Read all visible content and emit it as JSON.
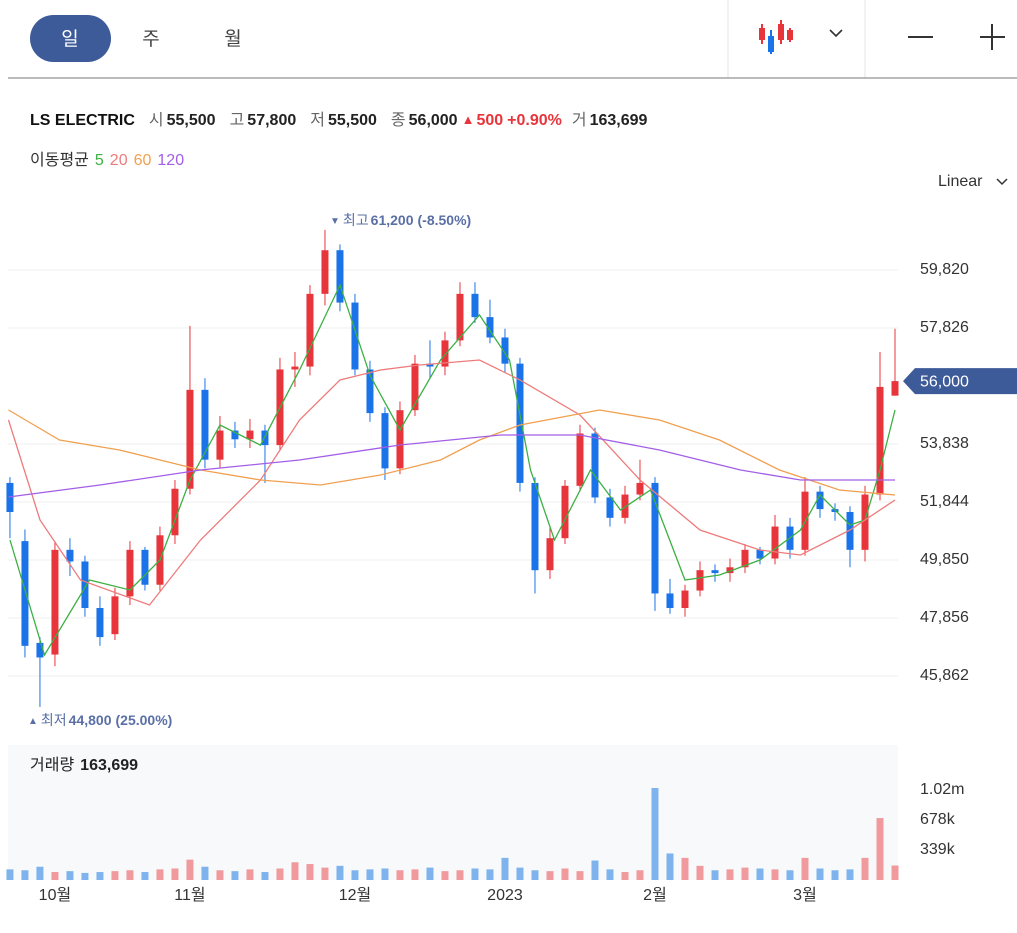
{
  "toolbar": {
    "tabs": [
      "일",
      "주",
      "월"
    ]
  },
  "info": {
    "name": "LS ELECTRIC",
    "items": [
      {
        "label": "시",
        "value": "55,500"
      },
      {
        "label": "고",
        "value": "57,800"
      },
      {
        "label": "저",
        "value": "55,500"
      },
      {
        "label": "종",
        "value": "56,000"
      }
    ],
    "change": {
      "arrow": "▲",
      "amount": "500",
      "percent": "+0.90%"
    },
    "volume": {
      "label": "거",
      "value": "163,699"
    }
  },
  "chart_data": {
    "type": "candlestick",
    "ma_title": "이동평균",
    "scale_label": "Linear",
    "grid": true,
    "xlim": [
      -0.13,
      59.2
    ],
    "xticks": [
      {
        "value": 3,
        "label": "10월"
      },
      {
        "value": 12,
        "label": "11월"
      },
      {
        "value": 23,
        "label": "12월"
      },
      {
        "value": 33,
        "label": "2023"
      },
      {
        "value": 43,
        "label": "2월"
      },
      {
        "value": 53,
        "label": "3월"
      }
    ],
    "ylim": [
      44006,
      62570
    ],
    "yticks": [
      {
        "value": 45862,
        "label": "45,862"
      },
      {
        "value": 47856,
        "label": "47,856"
      },
      {
        "value": 49850,
        "label": "49,850"
      },
      {
        "value": 51844,
        "label": "51,844"
      },
      {
        "value": 53838,
        "label": "53,838"
      },
      {
        "value": 57826,
        "label": "57,826"
      },
      {
        "value": 59820,
        "label": "59,820"
      }
    ],
    "up_color": "#e8343b",
    "down_color": "#1a73e8",
    "open": [
      52500,
      50500,
      47000,
      46600,
      50200,
      49800,
      48200,
      47300,
      48600,
      50200,
      49000,
      50700,
      52300,
      55700,
      53300,
      54300,
      54000,
      54300,
      53800,
      56400,
      56500,
      59000,
      60500,
      58700,
      56400,
      54900,
      53000,
      55000,
      56600,
      56500,
      57400,
      59000,
      58200,
      57500,
      56600,
      52500,
      49500,
      50600,
      52400,
      54200,
      52000,
      51300,
      52100,
      52500,
      48700,
      48200,
      48800,
      49500,
      49400,
      49600,
      50200,
      49900,
      51000,
      50200,
      52200,
      51600,
      51500,
      50200,
      52100,
      55500
    ],
    "high": [
      52700,
      50900,
      47200,
      50500,
      50600,
      50000,
      48600,
      48900,
      50500,
      50300,
      51000,
      52600,
      57900,
      56100,
      54800,
      54600,
      54700,
      54500,
      56800,
      57000,
      59300,
      61200,
      60700,
      59000,
      56700,
      55100,
      55300,
      56900,
      57400,
      57700,
      59400,
      59400,
      58800,
      57800,
      56800,
      52700,
      51000,
      52600,
      54500,
      54400,
      52300,
      52400,
      53300,
      52700,
      49200,
      49000,
      49800,
      49700,
      49900,
      50400,
      50300,
      51400,
      51300,
      52700,
      52400,
      51800,
      51700,
      52400,
      57000,
      57800
    ],
    "low": [
      50600,
      46500,
      44800,
      46200,
      49300,
      47900,
      46900,
      47100,
      48300,
      48800,
      48800,
      50400,
      52100,
      53000,
      53000,
      53700,
      53700,
      52500,
      53600,
      55800,
      56200,
      58600,
      58400,
      56200,
      54600,
      52600,
      52800,
      54800,
      56100,
      56200,
      57200,
      58000,
      57300,
      56300,
      52200,
      48700,
      49200,
      50400,
      52200,
      51800,
      51000,
      51100,
      51900,
      48100,
      48000,
      47900,
      48600,
      49100,
      49100,
      49400,
      49700,
      49700,
      49900,
      50000,
      51300,
      51200,
      49600,
      49800,
      51900,
      55500
    ],
    "close": [
      51500,
      46900,
      46500,
      50200,
      49800,
      48200,
      47200,
      48600,
      50200,
      49000,
      50700,
      52300,
      55700,
      53300,
      54300,
      54000,
      54300,
      53800,
      56400,
      56500,
      59000,
      60500,
      58700,
      56400,
      54900,
      53000,
      55000,
      56600,
      56500,
      57400,
      59000,
      58200,
      57500,
      56600,
      52500,
      49500,
      50600,
      52400,
      54200,
      52000,
      51300,
      52100,
      52500,
      48700,
      48200,
      48800,
      49500,
      49400,
      49600,
      50200,
      49900,
      51000,
      50200,
      52200,
      51600,
      51500,
      50200,
      52100,
      55800,
      56000
    ],
    "ma": [
      {
        "name": "5",
        "color": "#3cb043",
        "x": [
          0,
          2.3,
          5.3,
          8,
          10,
          12,
          14,
          16.7,
          19.3,
          22,
          24,
          26,
          28.7,
          31.3,
          33.3,
          34.7,
          36.3,
          38.7,
          40.7,
          42.7,
          45,
          47.3,
          50,
          52.7,
          54,
          56,
          57,
          58,
          59
        ],
        "values": [
          50537,
          46583,
          49162,
          48818,
          49850,
          52600,
          54490,
          53800,
          56380,
          59300,
          56200,
          54320,
          56726,
          58273,
          56726,
          52944,
          50537,
          52944,
          51569,
          52257,
          49162,
          49334,
          49850,
          50880,
          52085,
          51054,
          51225,
          52944,
          55006
        ]
      },
      {
        "name": "20",
        "color": "#ee7b7b",
        "x": [
          -0.1,
          2,
          4.7,
          9.3,
          12.7,
          16.7,
          19.3,
          22,
          24.7,
          27.3,
          31.3,
          34,
          38,
          42,
          46,
          50,
          52.7,
          56,
          59
        ],
        "values": [
          54663,
          51225,
          49162,
          48302,
          50537,
          52600,
          54663,
          56038,
          56382,
          56554,
          56726,
          56038,
          54835,
          52600,
          50880,
          50193,
          50021,
          50880,
          51912
        ]
      },
      {
        "name": "60",
        "color": "#f0a050",
        "x": [
          -0.1,
          3.3,
          7.3,
          12.7,
          16.7,
          20.7,
          24.7,
          28.7,
          31.3,
          34,
          39.3,
          43.3,
          47.3,
          51.3,
          55.3,
          59
        ],
        "values": [
          55006,
          53975,
          53631,
          52944,
          52600,
          52428,
          52772,
          53288,
          53975,
          54490,
          55006,
          54663,
          53975,
          52944,
          52257,
          52085
        ]
      },
      {
        "name": "120",
        "color": "#a35ee8",
        "x": [
          -0.1,
          6,
          12.7,
          19.3,
          26,
          32.7,
          38,
          43.3,
          48.7,
          52.7,
          59
        ],
        "values": [
          52016,
          52428,
          52944,
          53288,
          53804,
          54147,
          54147,
          53631,
          52944,
          52600,
          52600
        ]
      }
    ],
    "max_label": {
      "marker": "▼",
      "text": "최고",
      "value": 61200,
      "value_label": "61,200",
      "change": "(-8.50%)"
    },
    "min_label": {
      "marker": "▲",
      "text": "최저",
      "value": 44800,
      "value_label": "44,800",
      "change": "(25.00%)"
    },
    "last_price": {
      "value": 56000,
      "label": "56,000"
    },
    "volume": {
      "title": "거래량",
      "last_label": "163,699",
      "up_color": "#f09a9d",
      "down_color": "#7fb3ee",
      "ylim": [
        0,
        1525500
      ],
      "yticks": [
        {
          "value": 339000,
          "label": "339k"
        },
        {
          "value": 678000,
          "label": "678k"
        },
        {
          "value": 1020000,
          "label": "1.02m"
        }
      ],
      "values": [
        120000,
        110000,
        150000,
        90000,
        100000,
        80000,
        90000,
        100000,
        110000,
        90000,
        120000,
        130000,
        230000,
        150000,
        110000,
        100000,
        120000,
        90000,
        130000,
        200000,
        180000,
        140000,
        160000,
        110000,
        120000,
        130000,
        110000,
        120000,
        140000,
        100000,
        110000,
        130000,
        120000,
        250000,
        140000,
        110000,
        100000,
        130000,
        100000,
        220000,
        120000,
        90000,
        110000,
        1040000,
        300000,
        250000,
        160000,
        110000,
        120000,
        140000,
        130000,
        120000,
        110000,
        250000,
        130000,
        110000,
        120000,
        250000,
        700000,
        163699
      ]
    }
  }
}
